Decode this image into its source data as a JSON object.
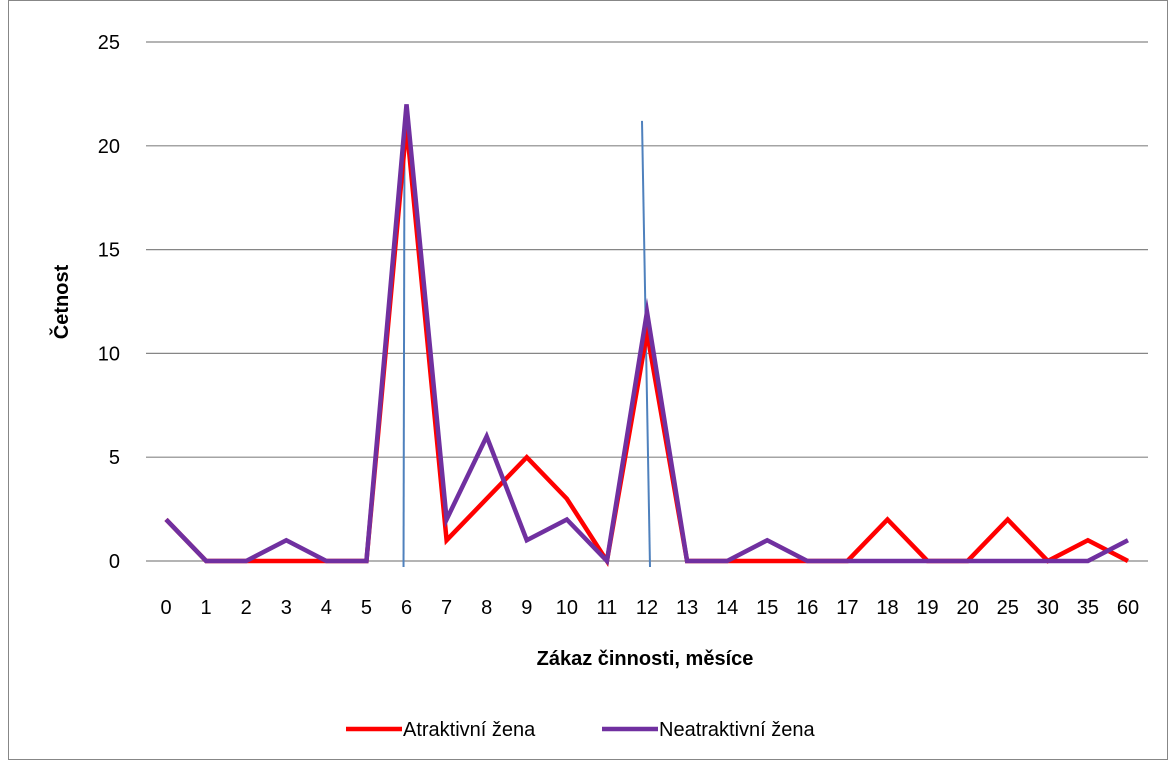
{
  "chart_data": {
    "type": "line",
    "categories": [
      "0",
      "1",
      "2",
      "3",
      "4",
      "5",
      "6",
      "7",
      "8",
      "9",
      "10",
      "11",
      "12",
      "13",
      "14",
      "15",
      "16",
      "17",
      "18",
      "19",
      "20",
      "25",
      "30",
      "35",
      "60"
    ],
    "series": [
      {
        "name": "Atraktivní žena",
        "color": "#ff0000",
        "values": [
          2,
          0,
          0,
          0,
          0,
          0,
          21,
          1,
          3,
          5,
          3,
          0,
          11,
          0,
          0,
          0,
          0,
          0,
          2,
          0,
          0,
          2,
          0,
          1,
          0
        ]
      },
      {
        "name": "Neatraktivní žena",
        "color": "#7030a0",
        "values": [
          2,
          0,
          0,
          1,
          0,
          0,
          22,
          2,
          6,
          1,
          2,
          0,
          12,
          0,
          0,
          1,
          0,
          0,
          0,
          0,
          0,
          0,
          0,
          0,
          1
        ]
      }
    ],
    "ylim": [
      0,
      25
    ],
    "yticks": [
      0,
      5,
      10,
      15,
      20,
      25
    ],
    "xlabel": "Zákaz činnosti, měsíce",
    "ylabel": "Četnost",
    "grid": "horizontal",
    "legend": "bottom",
    "reference_lines": [
      {
        "category_index": 6,
        "color": "#4f81bd",
        "top_value": 21.2
      },
      {
        "category_index": 12,
        "color": "#4f81bd",
        "top_value": 21.2
      }
    ]
  }
}
